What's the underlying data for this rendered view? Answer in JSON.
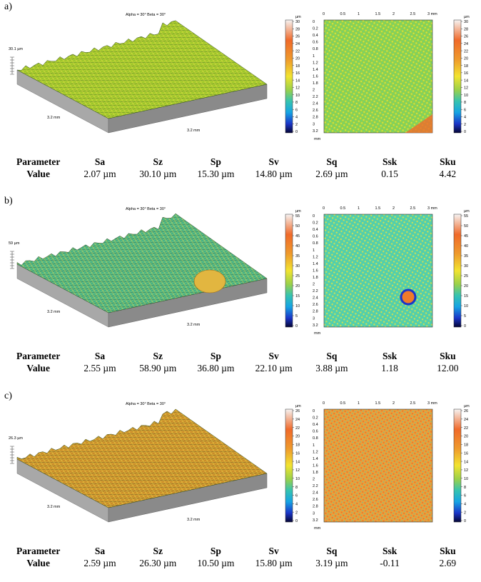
{
  "panels": [
    {
      "label": "a)",
      "iso": {
        "angles": "Alpha = 30°     Beta = 30°",
        "height": "30.1 µm",
        "axis1": "3.2 mm",
        "axis2": "3.2 mm"
      },
      "scale": {
        "unit": "µm",
        "ticks": [
          "30",
          "28",
          "26",
          "24",
          "22",
          "20",
          "18",
          "16",
          "14",
          "12",
          "10",
          "8",
          "6",
          "4",
          "2",
          "0"
        ]
      },
      "map": {
        "x_ticks": [
          "0",
          "0.5",
          "1",
          "1.5",
          "2",
          "2.5",
          "3 mm"
        ],
        "y_ticks": [
          "0",
          "0.2",
          "0.4",
          "0.6",
          "0.8",
          "1",
          "1.2",
          "1.4",
          "1.6",
          "1.8",
          "2",
          "2.2",
          "2.4",
          "2.6",
          "2.8",
          "3",
          "3.2"
        ],
        "y_unit": "mm"
      },
      "table": {
        "headers": [
          "Parameter",
          "Sa",
          "Sz",
          "Sp",
          "Sv",
          "Sq",
          "Ssk",
          "Sku"
        ],
        "values": [
          "Value",
          "2.07 µm",
          "30.10 µm",
          "15.30 µm",
          "14.80 µm",
          "2.69 µm",
          "0.15",
          "4.42"
        ]
      },
      "colors": {
        "surface": "#9bc62a",
        "map": "#8fd24c"
      }
    },
    {
      "label": "b)",
      "iso": {
        "angles": "Alpha = 30°     Beta = 30°",
        "height": "59 µm",
        "axis1": "3.2 mm",
        "axis2": "3.2 mm"
      },
      "scale": {
        "unit": "µm",
        "ticks": [
          "55",
          "50",
          "45",
          "40",
          "35",
          "30",
          "25",
          "20",
          "15",
          "10",
          "5",
          "0"
        ]
      },
      "map": {
        "x_ticks": [
          "0",
          "0.5",
          "1",
          "1.5",
          "2",
          "2.5",
          "3 mm"
        ],
        "y_ticks": [
          "0",
          "0.2",
          "0.4",
          "0.6",
          "0.8",
          "1",
          "1.2",
          "1.4",
          "1.6",
          "1.8",
          "2",
          "2.2",
          "2.4",
          "2.6",
          "2.8",
          "3",
          "3.2"
        ],
        "y_unit": "mm"
      },
      "table": {
        "headers": [
          "Parameter",
          "Sa",
          "Sz",
          "Sp",
          "Sv",
          "Sq",
          "Ssk",
          "Sku"
        ],
        "values": [
          "Value",
          "2.55 µm",
          "58.90 µm",
          "36.80 µm",
          "22.10 µm",
          "3.88 µm",
          "1.18",
          "12.00"
        ]
      },
      "colors": {
        "surface": "#3fb08a",
        "map": "#56d0a8"
      }
    },
    {
      "label": "c)",
      "iso": {
        "angles": "Alpha = 30°     Beta = 30°",
        "height": "26.3 µm",
        "axis1": "3.2 mm",
        "axis2": "3.2 mm"
      },
      "scale": {
        "unit": "µm",
        "ticks": [
          "26",
          "24",
          "22",
          "20",
          "18",
          "16",
          "14",
          "12",
          "10",
          "8",
          "6",
          "4",
          "2",
          "0"
        ]
      },
      "map": {
        "x_ticks": [
          "0",
          "0.5",
          "1",
          "1.5",
          "2",
          "2.5",
          "3 mm"
        ],
        "y_ticks": [
          "0",
          "0.2",
          "0.4",
          "0.6",
          "0.8",
          "1",
          "1.2",
          "1.4",
          "1.6",
          "1.8",
          "2",
          "2.2",
          "2.4",
          "2.6",
          "2.8",
          "3",
          "3.2"
        ],
        "y_unit": "mm"
      },
      "table": {
        "headers": [
          "Parameter",
          "Sa",
          "Sz",
          "Sp",
          "Sv",
          "Sq",
          "Ssk",
          "Sku"
        ],
        "values": [
          "Value",
          "2.59 µm",
          "26.30 µm",
          "10.50 µm",
          "15.80 µm",
          "3.19 µm",
          "-0.11",
          "2.69"
        ]
      },
      "colors": {
        "surface": "#c98a2a",
        "map": "#e8a23a"
      }
    }
  ]
}
